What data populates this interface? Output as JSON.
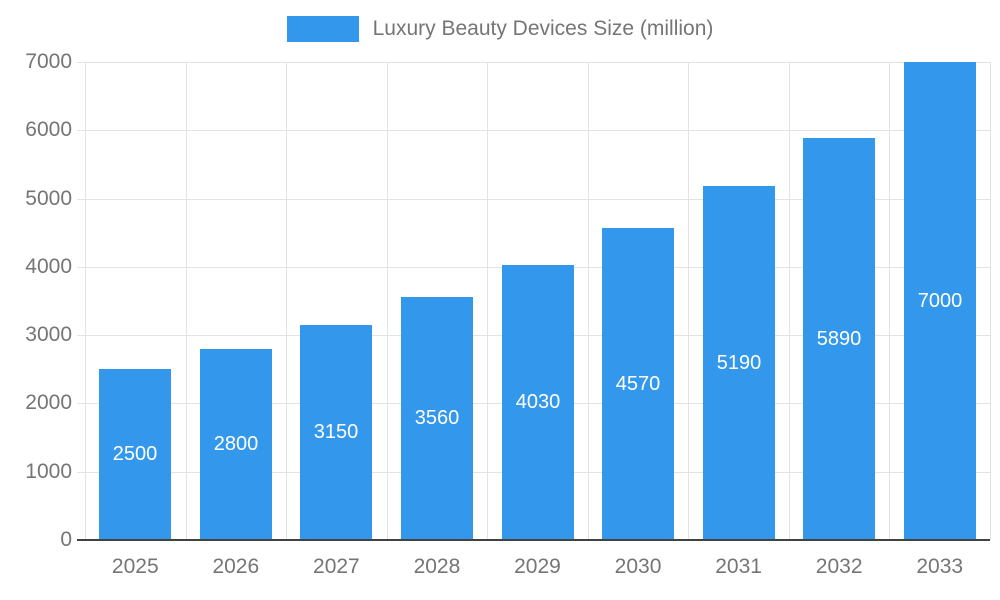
{
  "chart_data": {
    "type": "bar",
    "title": "Luxury Beauty Devices Size (million)",
    "categories": [
      "2025",
      "2026",
      "2027",
      "2028",
      "2029",
      "2030",
      "2031",
      "2032",
      "2033"
    ],
    "values": [
      2500,
      2800,
      3150,
      3560,
      4030,
      4570,
      5190,
      5890,
      7000
    ],
    "xlabel": "",
    "ylabel": "",
    "ylim": [
      0,
      7000
    ],
    "ytick_step": 1000,
    "grid": true,
    "legend_position": "top",
    "bar_color": "#3398EC",
    "bar_label_color": "#ffffff",
    "axis_text_color": "#757575",
    "grid_color": "#e3e3e3",
    "baseline_color": "#424242",
    "background_color": "#ffffff"
  }
}
